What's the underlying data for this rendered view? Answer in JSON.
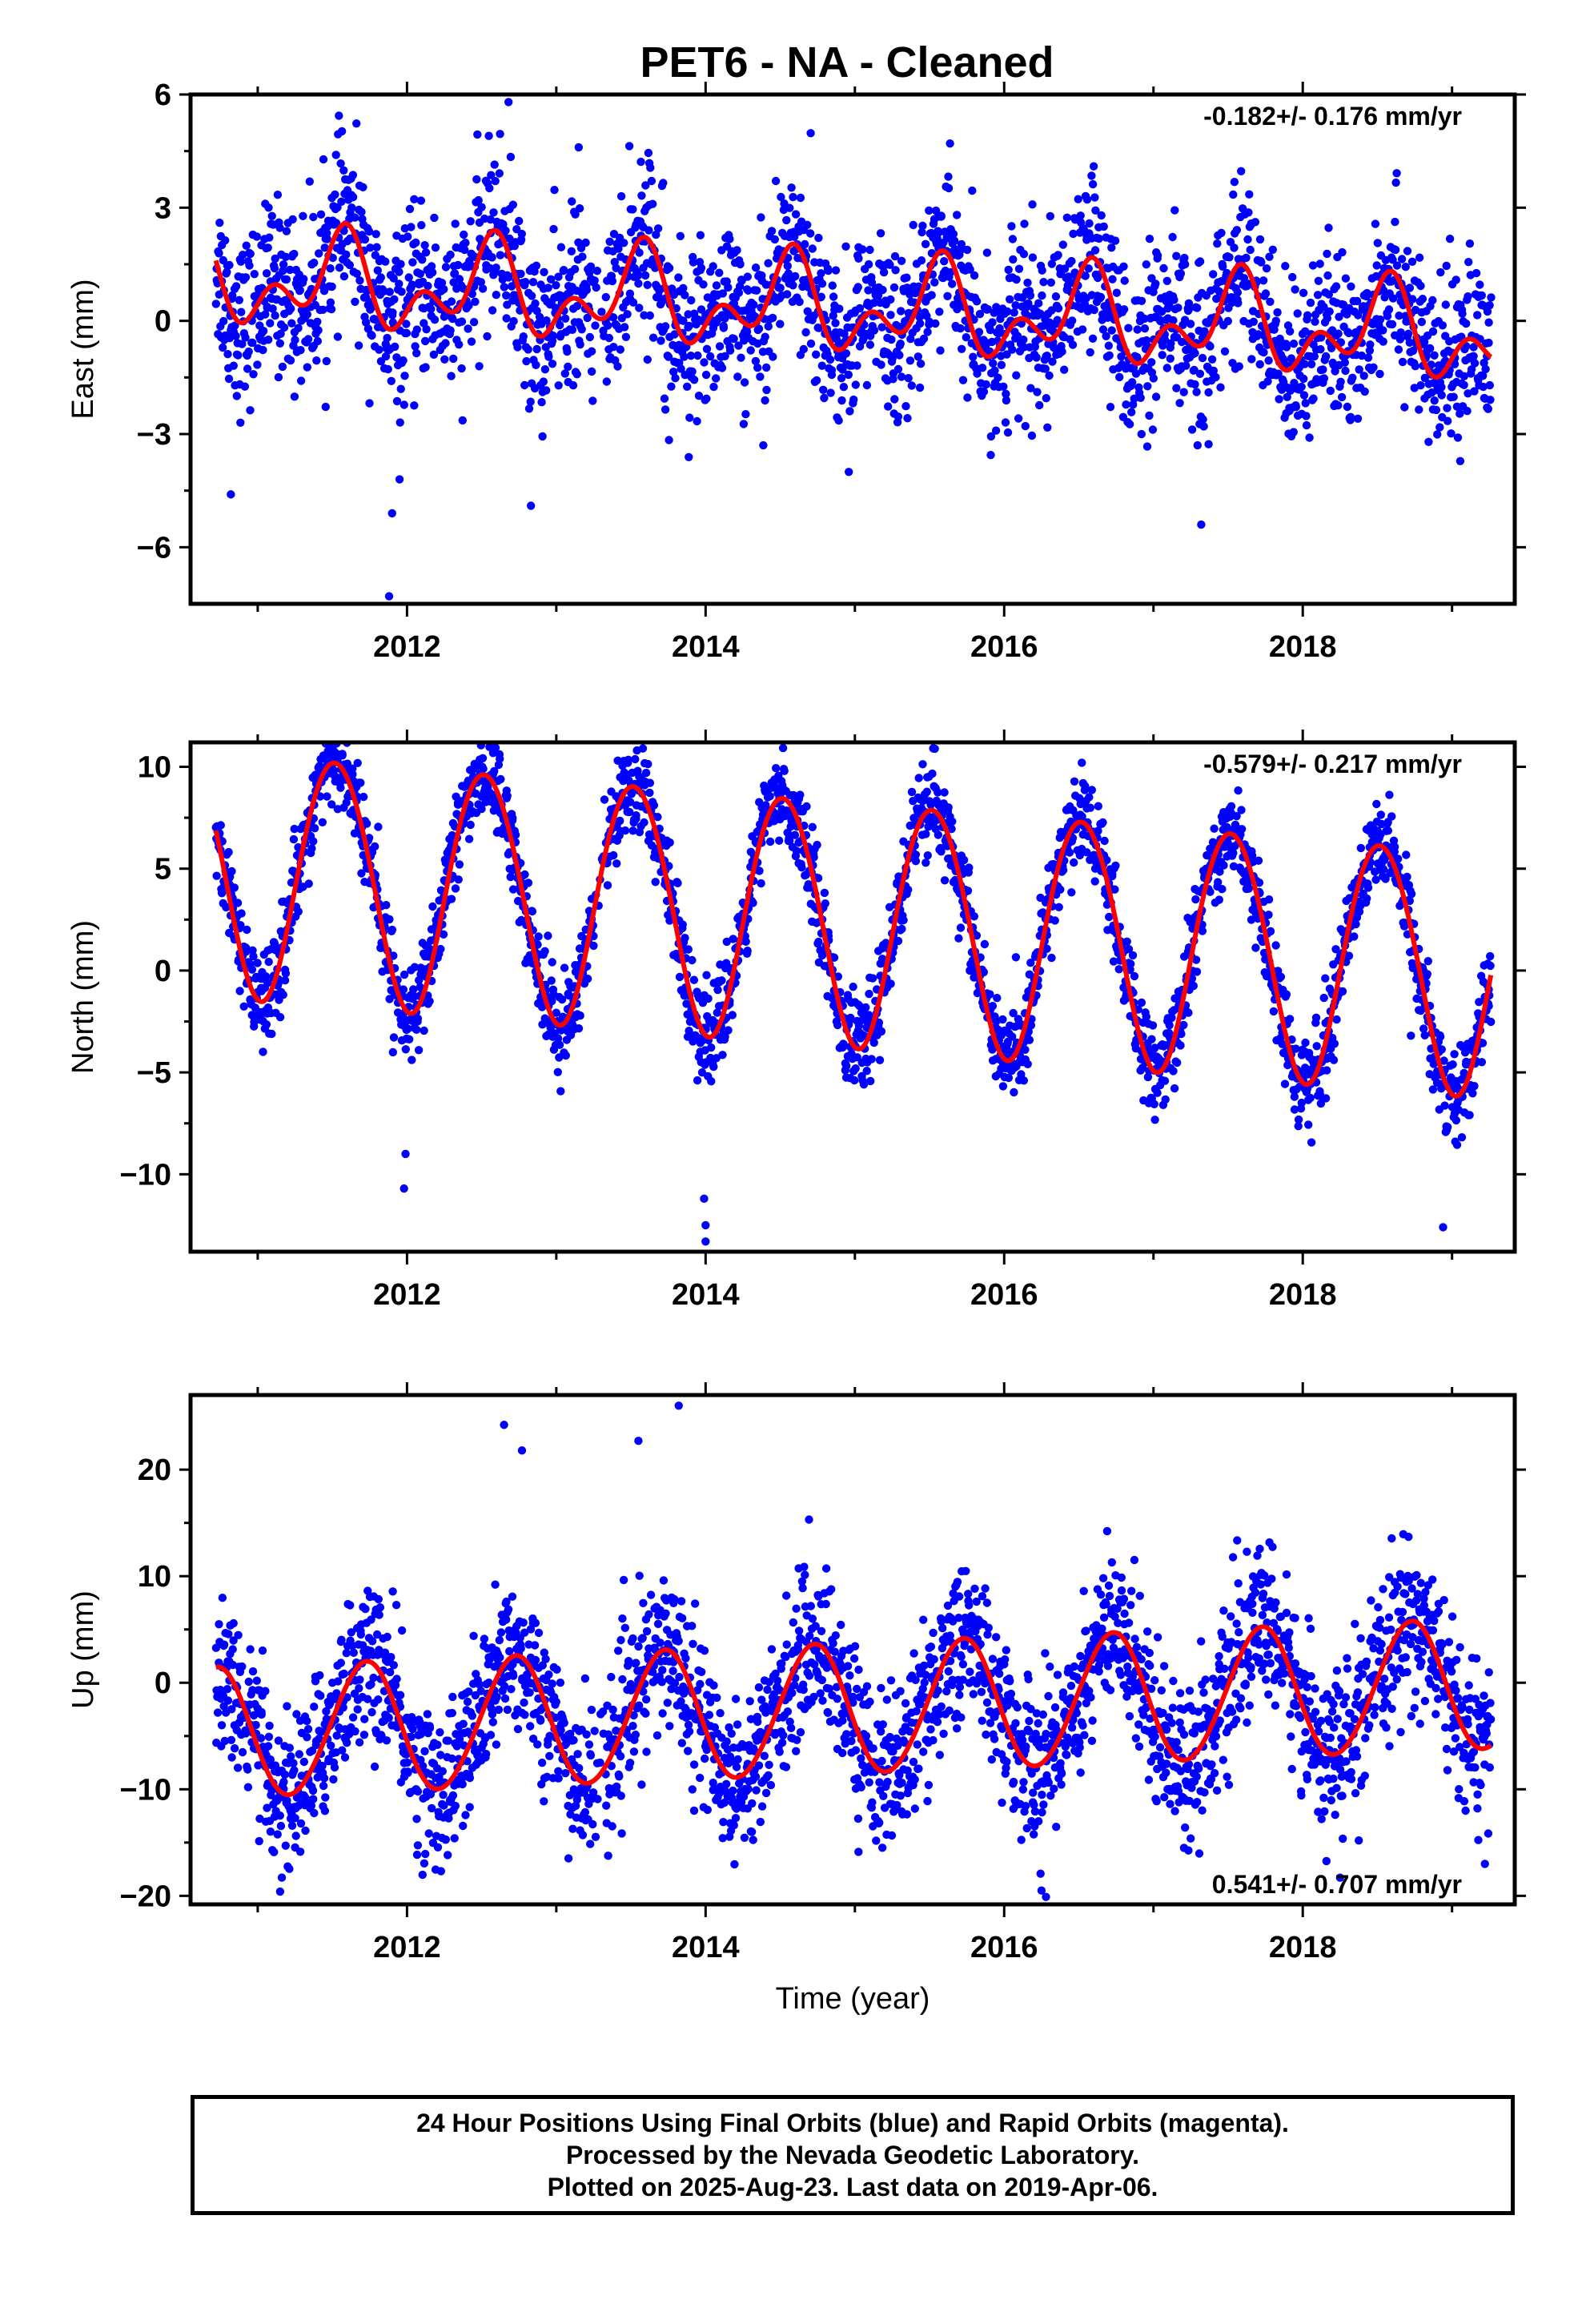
{
  "title": "PET6  - NA - Cleaned",
  "footer": {
    "line1": "24 Hour Positions Using Final Orbits (blue) and Rapid Orbits (magenta).",
    "line2": "Processed by the Nevada Geodetic Laboratory.",
    "line3": "Plotted on 2025-Aug-23. Last data on 2019-Apr-06."
  },
  "colors": {
    "points": "#0000ff",
    "model": "#ff0000",
    "axes": "#000000"
  },
  "chart_data": [
    {
      "type": "scatter",
      "ylabel": "East (mm)",
      "xlabel": "",
      "xlim": [
        2010.55,
        2019.42
      ],
      "ylim": [
        -7.5,
        6.0
      ],
      "yticks": [
        6,
        3,
        0,
        -3,
        -6
      ],
      "xticks": [
        2012,
        2014,
        2016,
        2018
      ],
      "rate_label": "-0.182+/- 0.176 mm/yr",
      "rate_position": "top-right",
      "data_start": 2010.72,
      "data_end": 2019.26,
      "scatter_sd": 1.1,
      "model": {
        "name": "",
        "offset": 0.35,
        "trend_per_year": -0.18,
        "annual_amp": 0.9,
        "annual_phase": 2011.55,
        "semiannual_amp": 0.75,
        "semiannual_phase": 2011.6,
        "x_start": 2010.72,
        "x_end": 2019.26
      },
      "outliers": [
        {
          "x": 2011.88,
          "y": -7.3
        },
        {
          "x": 2011.9,
          "y": -5.1
        },
        {
          "x": 2011.95,
          "y": -4.2
        },
        {
          "x": 2012.83,
          "y": -4.9
        },
        {
          "x": 2010.82,
          "y": -4.6
        },
        {
          "x": 2012.68,
          "y": 5.8
        },
        {
          "x": 2017.32,
          "y": -5.4
        },
        {
          "x": 2013.15,
          "y": 4.6
        }
      ]
    },
    {
      "type": "scatter",
      "ylabel": "North (mm)",
      "xlabel": "",
      "xlim": [
        2010.55,
        2019.42
      ],
      "ylim": [
        -13.8,
        11.2
      ],
      "yticks": [
        10,
        5,
        0,
        -5,
        -10
      ],
      "xticks": [
        2012,
        2014,
        2016,
        2018
      ],
      "rate_label": "-0.579+/- 0.217 mm/yr",
      "rate_position": "top-right",
      "data_start": 2010.72,
      "data_end": 2019.26,
      "scatter_sd": 1.1,
      "model": {
        "name": "",
        "offset": 2.4,
        "trend_per_year": -0.58,
        "annual_amp": 6.0,
        "annual_phase": 2011.52,
        "semiannual_amp": 0.25,
        "semiannual_phase": 2011.3,
        "x_start": 2010.72,
        "x_end": 2019.26
      },
      "outliers": [
        {
          "x": 2014.0,
          "y": -13.3
        },
        {
          "x": 2014.0,
          "y": -12.5
        },
        {
          "x": 2013.99,
          "y": -11.2
        },
        {
          "x": 2011.98,
          "y": -10.7
        },
        {
          "x": 2011.99,
          "y": -9.0
        },
        {
          "x": 2018.94,
          "y": -12.6
        },
        {
          "x": 2013.58,
          "y": 10.9
        },
        {
          "x": 2016.52,
          "y": 10.2
        }
      ]
    },
    {
      "type": "scatter",
      "ylabel": "Up (mm)",
      "xlabel": "Time (year)",
      "xlim": [
        2010.55,
        2019.42
      ],
      "ylim": [
        -20.8,
        27.0
      ],
      "yticks": [
        20,
        10,
        0,
        -10,
        -20
      ],
      "xticks": [
        2012,
        2014,
        2016,
        2018
      ],
      "rate_label": "0.541+/- 0.707 mm/yr",
      "rate_position": "bottom-right",
      "data_start": 2010.72,
      "data_end": 2019.26,
      "scatter_sd": 3.6,
      "model": {
        "name": "",
        "offset": -2.5,
        "trend_per_year": 0.54,
        "annual_amp": 6.1,
        "annual_phase": 2011.72,
        "semiannual_amp": 0.3,
        "semiannual_phase": 2011.8,
        "x_start": 2010.72,
        "x_end": 2019.26
      },
      "outliers": [
        {
          "x": 2013.82,
          "y": 26.0
        },
        {
          "x": 2012.65,
          "y": 24.2
        },
        {
          "x": 2012.77,
          "y": 21.8
        },
        {
          "x": 2013.55,
          "y": 22.7
        },
        {
          "x": 2011.15,
          "y": -19.6
        },
        {
          "x": 2016.28,
          "y": -20.1
        },
        {
          "x": 2016.25,
          "y": -19.5
        },
        {
          "x": 2019.22,
          "y": -17.0
        },
        {
          "x": 2018.25,
          "y": -18.3
        }
      ]
    }
  ]
}
